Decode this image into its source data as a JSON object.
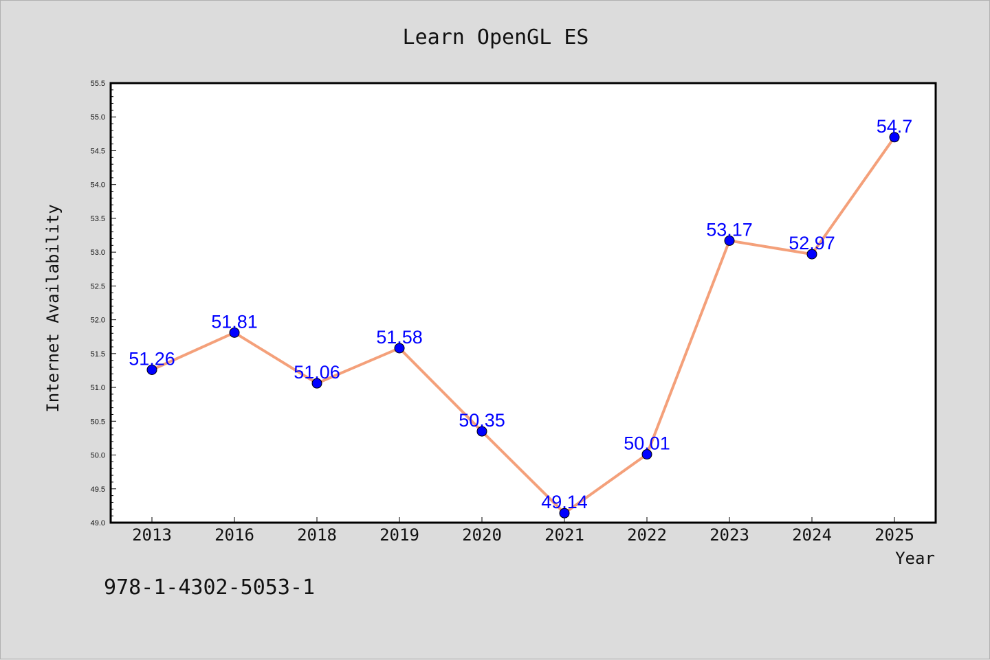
{
  "chart_data": {
    "type": "line",
    "title": "Learn OpenGL ES",
    "xlabel": "Year",
    "ylabel": "Internet Availability",
    "categories": [
      "2013",
      "2016",
      "2018",
      "2019",
      "2020",
      "2021",
      "2022",
      "2023",
      "2024",
      "2025"
    ],
    "series": [
      {
        "values": [
          51.26,
          51.81,
          51.06,
          51.58,
          50.35,
          49.14,
          50.01,
          53.17,
          52.97,
          54.7
        ]
      }
    ],
    "data_labels": [
      "51.26",
      "51.81",
      "51.06",
      "51.58",
      "50.35",
      "49.14",
      "50.01",
      "53.17",
      "52.97",
      "54.7"
    ],
    "ylim": [
      49.0,
      55.5
    ],
    "yticks": [
      49.0,
      49.5,
      50.0,
      50.5,
      51.0,
      51.5,
      52.0,
      52.5,
      53.0,
      53.5,
      54.0,
      54.5,
      55.0,
      55.5
    ],
    "grid": false,
    "legend": "none",
    "line_color": "#f4a07a",
    "marker_color": "#0000ff",
    "label_color": "#0000ff",
    "background_color": "#dcdcdc",
    "plot_background": "#ffffff"
  },
  "footer_text": "978-1-4302-5053-1"
}
